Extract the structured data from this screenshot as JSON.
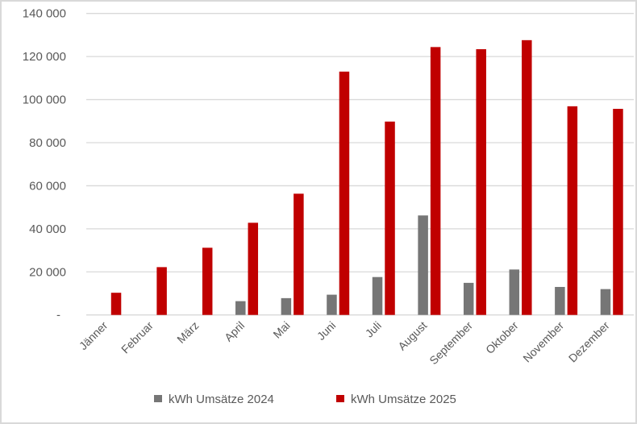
{
  "chart_data": {
    "type": "bar",
    "title": "",
    "xlabel": "",
    "ylabel": "",
    "ylim": [
      0,
      140000
    ],
    "yticks": [
      0,
      20000,
      40000,
      60000,
      80000,
      100000,
      120000,
      140000
    ],
    "ytick_labels": [
      "-",
      "20 000",
      "40 000",
      "60 000",
      "80 000",
      "100 000",
      "120 000",
      "140 000"
    ],
    "grid": true,
    "legend_position": "bottom",
    "categories": [
      "Jänner",
      "Februar",
      "März",
      "April",
      "Mai",
      "Juni",
      "Juli",
      "August",
      "September",
      "Oktober",
      "November",
      "Dezember"
    ],
    "series": [
      {
        "name": "kWh Umsätze 2024",
        "color": "#767676",
        "values": [
          null,
          null,
          null,
          6400,
          7800,
          9400,
          17600,
          46200,
          14900,
          21100,
          13000,
          12000
        ]
      },
      {
        "name": "kWh Umsätze 2025",
        "color": "#c00000",
        "values": [
          10300,
          22200,
          31200,
          42800,
          56300,
          113000,
          89800,
          124400,
          123400,
          127600,
          96900,
          95700
        ]
      }
    ]
  }
}
